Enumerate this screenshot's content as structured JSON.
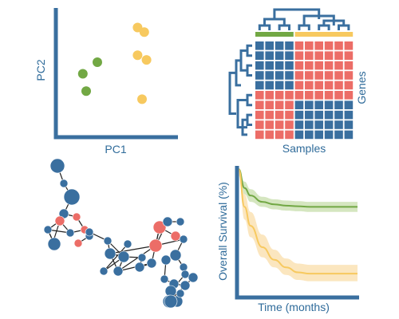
{
  "colors": {
    "blue": "#3a6f9f",
    "green": "#72a844",
    "yellow": "#f7c95f",
    "red": "#ec6d67",
    "edge": "#222222",
    "survival_green_band": "#d5e6c0",
    "survival_yellow_band": "#fbe6bf"
  },
  "panels": {
    "pca": {
      "xlabel": "PC1",
      "ylabel": "PC2"
    },
    "heatmap": {
      "xlabel": "Samples",
      "ylabel": "Genes"
    },
    "network": {},
    "survival": {
      "xlabel": "Time (months)",
      "ylabel": "Overall Survival (%)"
    }
  },
  "chart_data": [
    {
      "type": "scatter",
      "title": "",
      "xlabel": "PC1",
      "ylabel": "PC2",
      "grid": false,
      "groups": [
        {
          "color": "green",
          "points": [
            [
              0.17,
              0.5
            ],
            [
              0.3,
              0.6
            ],
            [
              0.2,
              0.35
            ]
          ]
        },
        {
          "color": "yellow",
          "points": [
            [
              0.66,
              0.9
            ],
            [
              0.72,
              0.86
            ],
            [
              0.66,
              0.66
            ],
            [
              0.74,
              0.62
            ],
            [
              0.7,
              0.28
            ]
          ]
        }
      ]
    },
    {
      "type": "heatmap",
      "title": "",
      "xlabel": "Samples",
      "ylabel": "Genes",
      "column_groups": [
        "green",
        "green",
        "green",
        "green",
        "yellow",
        "yellow",
        "yellow",
        "yellow",
        "yellow",
        "yellow"
      ],
      "values": [
        [
          "blue",
          "blue",
          "blue",
          "blue",
          "red",
          "red",
          "red",
          "red",
          "red",
          "red"
        ],
        [
          "blue",
          "blue",
          "blue",
          "blue",
          "red",
          "red",
          "red",
          "red",
          "red",
          "red"
        ],
        [
          "blue",
          "blue",
          "blue",
          "blue",
          "red",
          "red",
          "red",
          "red",
          "red",
          "red"
        ],
        [
          "blue",
          "blue",
          "blue",
          "blue",
          "red",
          "red",
          "red",
          "red",
          "red",
          "red"
        ],
        [
          "blue",
          "blue",
          "blue",
          "blue",
          "red",
          "red",
          "red",
          "red",
          "red",
          "red"
        ],
        [
          "red",
          "red",
          "red",
          "red",
          "red",
          "red",
          "red",
          "red",
          "red",
          "red"
        ],
        [
          "red",
          "red",
          "red",
          "red",
          "blue",
          "blue",
          "blue",
          "blue",
          "blue",
          "blue"
        ],
        [
          "red",
          "red",
          "red",
          "red",
          "blue",
          "blue",
          "blue",
          "blue",
          "blue",
          "blue"
        ],
        [
          "red",
          "red",
          "red",
          "red",
          "blue",
          "blue",
          "blue",
          "blue",
          "blue",
          "blue"
        ],
        [
          "red",
          "red",
          "red",
          "red",
          "blue",
          "blue",
          "blue",
          "blue",
          "blue",
          "blue"
        ]
      ]
    },
    {
      "type": "network",
      "title": "",
      "nodes": [
        {
          "id": 0,
          "size": 9,
          "color": "blue"
        },
        {
          "id": 1,
          "size": 5,
          "color": "blue"
        },
        {
          "id": 2,
          "size": 10,
          "color": "blue"
        },
        {
          "id": 3,
          "size": 6,
          "color": "blue"
        },
        {
          "id": 4,
          "size": 6,
          "color": "red"
        },
        {
          "id": 5,
          "size": 5,
          "color": "red"
        },
        {
          "id": 6,
          "size": 5,
          "color": "blue"
        },
        {
          "id": 7,
          "size": 5,
          "color": "blue"
        },
        {
          "id": 8,
          "size": 5,
          "color": "red"
        },
        {
          "id": 9,
          "size": 5,
          "color": "blue"
        },
        {
          "id": 10,
          "size": 5,
          "color": "blue"
        },
        {
          "id": 11,
          "size": 8,
          "color": "blue"
        },
        {
          "id": 12,
          "size": 5,
          "color": "red"
        },
        {
          "id": 13,
          "size": 5,
          "color": "blue"
        },
        {
          "id": 14,
          "size": 5,
          "color": "blue"
        },
        {
          "id": 15,
          "size": 7,
          "color": "blue"
        },
        {
          "id": 16,
          "size": 7,
          "color": "blue"
        },
        {
          "id": 17,
          "size": 5,
          "color": "blue"
        },
        {
          "id": 18,
          "size": 6,
          "color": "blue"
        },
        {
          "id": 19,
          "size": 5,
          "color": "blue"
        },
        {
          "id": 20,
          "size": 8,
          "color": "red"
        },
        {
          "id": 21,
          "size": 5,
          "color": "blue"
        },
        {
          "id": 22,
          "size": 6,
          "color": "blue"
        },
        {
          "id": 23,
          "size": 6,
          "color": "blue"
        },
        {
          "id": 24,
          "size": 8,
          "color": "red"
        },
        {
          "id": 25,
          "size": 6,
          "color": "red"
        },
        {
          "id": 26,
          "size": 6,
          "color": "blue"
        },
        {
          "id": 27,
          "size": 5,
          "color": "blue"
        },
        {
          "id": 28,
          "size": 5,
          "color": "blue"
        },
        {
          "id": 29,
          "size": 7,
          "color": "blue"
        },
        {
          "id": 30,
          "size": 6,
          "color": "blue"
        },
        {
          "id": 31,
          "size": 5,
          "color": "blue"
        },
        {
          "id": 32,
          "size": 5,
          "color": "blue"
        },
        {
          "id": 33,
          "size": 6,
          "color": "blue"
        },
        {
          "id": 34,
          "size": 6,
          "color": "blue"
        },
        {
          "id": 35,
          "size": 6,
          "color": "blue"
        },
        {
          "id": 36,
          "size": 7,
          "color": "blue"
        },
        {
          "id": 37,
          "size": 7,
          "color": "blue"
        },
        {
          "id": 38,
          "size": 8,
          "color": "blue"
        },
        {
          "id": 39,
          "size": 5,
          "color": "blue"
        },
        {
          "id": 40,
          "size": 8,
          "color": "blue"
        },
        {
          "id": 41,
          "size": 5,
          "color": "blue"
        }
      ],
      "edges": [
        [
          0,
          1
        ],
        [
          1,
          2
        ],
        [
          2,
          3
        ],
        [
          3,
          4
        ],
        [
          3,
          5
        ],
        [
          4,
          6
        ],
        [
          4,
          7
        ],
        [
          5,
          8
        ],
        [
          6,
          7
        ],
        [
          7,
          8
        ],
        [
          4,
          9
        ],
        [
          9,
          11
        ],
        [
          6,
          11
        ],
        [
          8,
          10
        ],
        [
          10,
          12
        ],
        [
          10,
          13
        ],
        [
          8,
          13
        ],
        [
          13,
          14
        ],
        [
          14,
          15
        ],
        [
          14,
          16
        ],
        [
          15,
          16
        ],
        [
          15,
          18
        ],
        [
          16,
          17
        ],
        [
          17,
          19
        ],
        [
          16,
          18
        ],
        [
          18,
          20
        ],
        [
          16,
          21
        ],
        [
          21,
          23
        ],
        [
          23,
          22
        ],
        [
          22,
          24
        ],
        [
          24,
          25
        ],
        [
          24,
          20
        ],
        [
          20,
          26
        ],
        [
          26,
          27
        ],
        [
          20,
          28
        ],
        [
          28,
          29
        ],
        [
          29,
          30
        ],
        [
          29,
          31
        ],
        [
          30,
          32
        ],
        [
          32,
          33
        ],
        [
          33,
          34
        ],
        [
          34,
          35
        ],
        [
          33,
          36
        ],
        [
          36,
          37
        ],
        [
          35,
          38
        ],
        [
          37,
          38
        ],
        [
          38,
          39
        ],
        [
          39,
          40
        ],
        [
          36,
          41
        ],
        [
          15,
          20
        ],
        [
          18,
          22
        ],
        [
          11,
          6
        ]
      ]
    },
    {
      "type": "line",
      "title": "",
      "xlabel": "Time (months)",
      "ylabel": "Overall Survival (%)",
      "grid": false,
      "x": [
        0,
        0.05,
        0.1,
        0.2,
        0.3,
        0.4,
        0.5,
        0.6,
        0.7,
        0.8,
        0.9,
        1.0
      ],
      "ylim": [
        0,
        1
      ],
      "series": [
        {
          "color": "green",
          "values": [
            1.0,
            0.85,
            0.79,
            0.74,
            0.72,
            0.71,
            0.705,
            0.7,
            0.7,
            0.7,
            0.7,
            0.7
          ],
          "lower": [
            0.97,
            0.8,
            0.74,
            0.7,
            0.68,
            0.67,
            0.665,
            0.66,
            0.66,
            0.66,
            0.66,
            0.66
          ],
          "upper": [
            1.0,
            0.9,
            0.84,
            0.78,
            0.76,
            0.75,
            0.745,
            0.74,
            0.74,
            0.74,
            0.74,
            0.74
          ]
        },
        {
          "color": "yellow",
          "values": [
            1.0,
            0.7,
            0.55,
            0.38,
            0.28,
            0.22,
            0.18,
            0.17,
            0.17,
            0.17,
            0.17,
            0.17
          ],
          "lower": [
            0.95,
            0.6,
            0.46,
            0.3,
            0.22,
            0.16,
            0.12,
            0.11,
            0.11,
            0.11,
            0.11,
            0.11
          ],
          "upper": [
            1.0,
            0.8,
            0.66,
            0.48,
            0.36,
            0.29,
            0.25,
            0.24,
            0.24,
            0.24,
            0.24,
            0.24
          ]
        }
      ]
    }
  ]
}
